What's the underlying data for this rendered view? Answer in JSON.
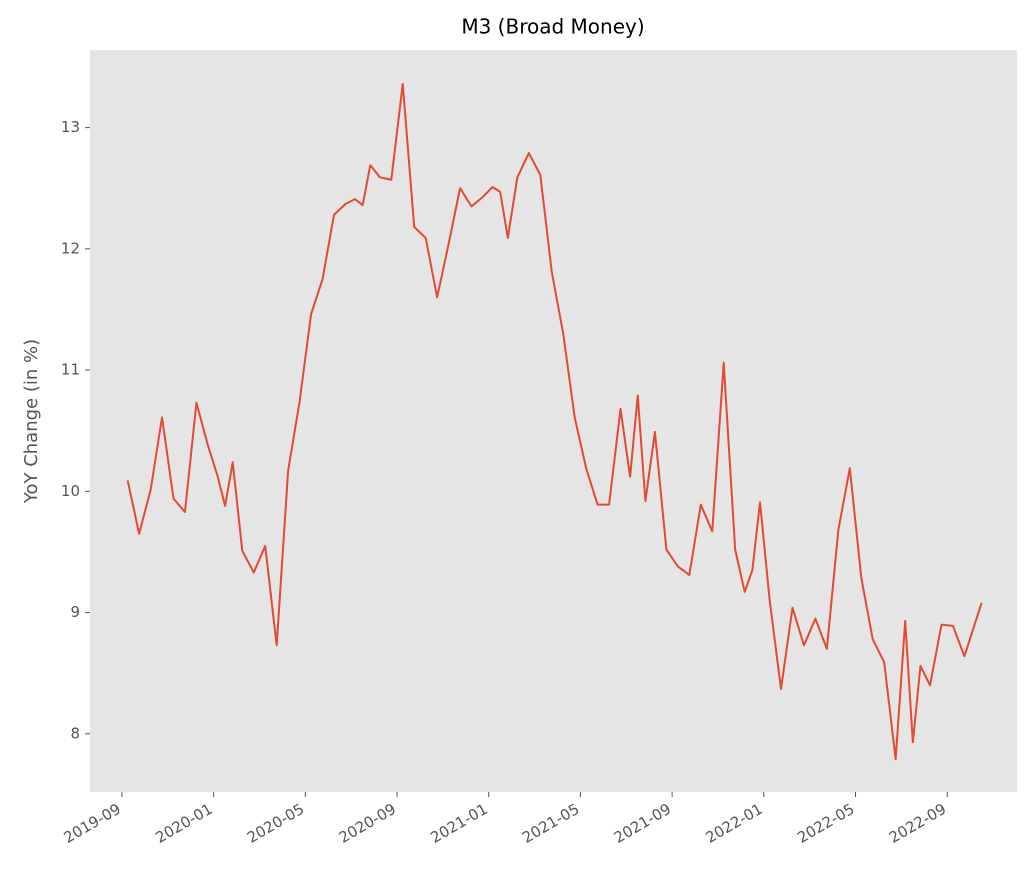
{
  "chart_data": {
    "type": "line",
    "title": "M3 (Broad Money)",
    "y_label": "YoY Change (in %)",
    "x": [
      "2019-09",
      "2019-09",
      "2019-10",
      "2019-10",
      "2019-11",
      "2019-11",
      "2019-12",
      "2019-12",
      "2020-01",
      "2020-01",
      "2020-01",
      "2020-02",
      "2020-02",
      "2020-03",
      "2020-03",
      "2020-04",
      "2020-04",
      "2020-05",
      "2020-05",
      "2020-06",
      "2020-06",
      "2020-07",
      "2020-07",
      "2020-07",
      "2020-08",
      "2020-08",
      "2020-09",
      "2020-09",
      "2020-10",
      "2020-10",
      "2020-11",
      "2020-11",
      "2020-12",
      "2020-12",
      "2021-01",
      "2021-01",
      "2021-01",
      "2021-02",
      "2021-02",
      "2021-03",
      "2021-03",
      "2021-04",
      "2021-04",
      "2021-05",
      "2021-05",
      "2021-06",
      "2021-06",
      "2021-07",
      "2021-07",
      "2021-07",
      "2021-08",
      "2021-08",
      "2021-09",
      "2021-09",
      "2021-10",
      "2021-10",
      "2021-11",
      "2021-11",
      "2021-12",
      "2021-12",
      "2021-12",
      "2022-01",
      "2022-01",
      "2022-02",
      "2022-02",
      "2022-03",
      "2022-03",
      "2022-04",
      "2022-04",
      "2022-05",
      "2022-05",
      "2022-06",
      "2022-06",
      "2022-07",
      "2022-07",
      "2022-07",
      "2022-08",
      "2022-08",
      "2022-09",
      "2022-09",
      "2022-10"
    ],
    "series": [
      {
        "color": "#e24a33",
        "values": [
          10.09,
          9.65,
          10.01,
          10.61,
          9.94,
          9.83,
          10.73,
          10.38,
          10.13,
          9.88,
          10.24,
          9.51,
          9.33,
          9.55,
          8.73,
          10.17,
          10.74,
          11.46,
          11.75,
          12.28,
          12.37,
          12.41,
          12.36,
          12.69,
          12.59,
          12.57,
          13.36,
          12.18,
          12.09,
          11.6,
          12.04,
          12.5,
          12.35,
          12.43,
          12.51,
          12.47,
          12.09,
          12.59,
          12.79,
          12.61,
          11.81,
          11.3,
          10.61,
          10.19,
          9.89,
          9.89,
          10.68,
          10.12,
          10.79,
          9.92,
          10.49,
          9.52,
          9.38,
          9.31,
          9.89,
          9.67,
          11.06,
          9.52,
          9.17,
          9.35,
          9.91,
          9.11,
          8.37,
          9.04,
          8.73,
          8.95,
          8.7,
          9.68,
          10.19,
          9.29,
          8.78,
          8.59,
          7.79,
          8.93,
          7.93,
          8.56,
          8.4,
          8.9,
          8.89,
          8.64,
          9.08
        ]
      }
    ],
    "xlim": [
      "2019-08",
      "2022-12"
    ],
    "xticks": [
      "2019-09",
      "2020-01",
      "2020-05",
      "2020-09",
      "2021-01",
      "2021-05",
      "2021-09",
      "2022-01",
      "2022-05",
      "2022-09"
    ],
    "ylim": [
      7.52,
      13.64
    ],
    "yticks": [
      8,
      9,
      10,
      11,
      12,
      13
    ],
    "grid": false
  }
}
